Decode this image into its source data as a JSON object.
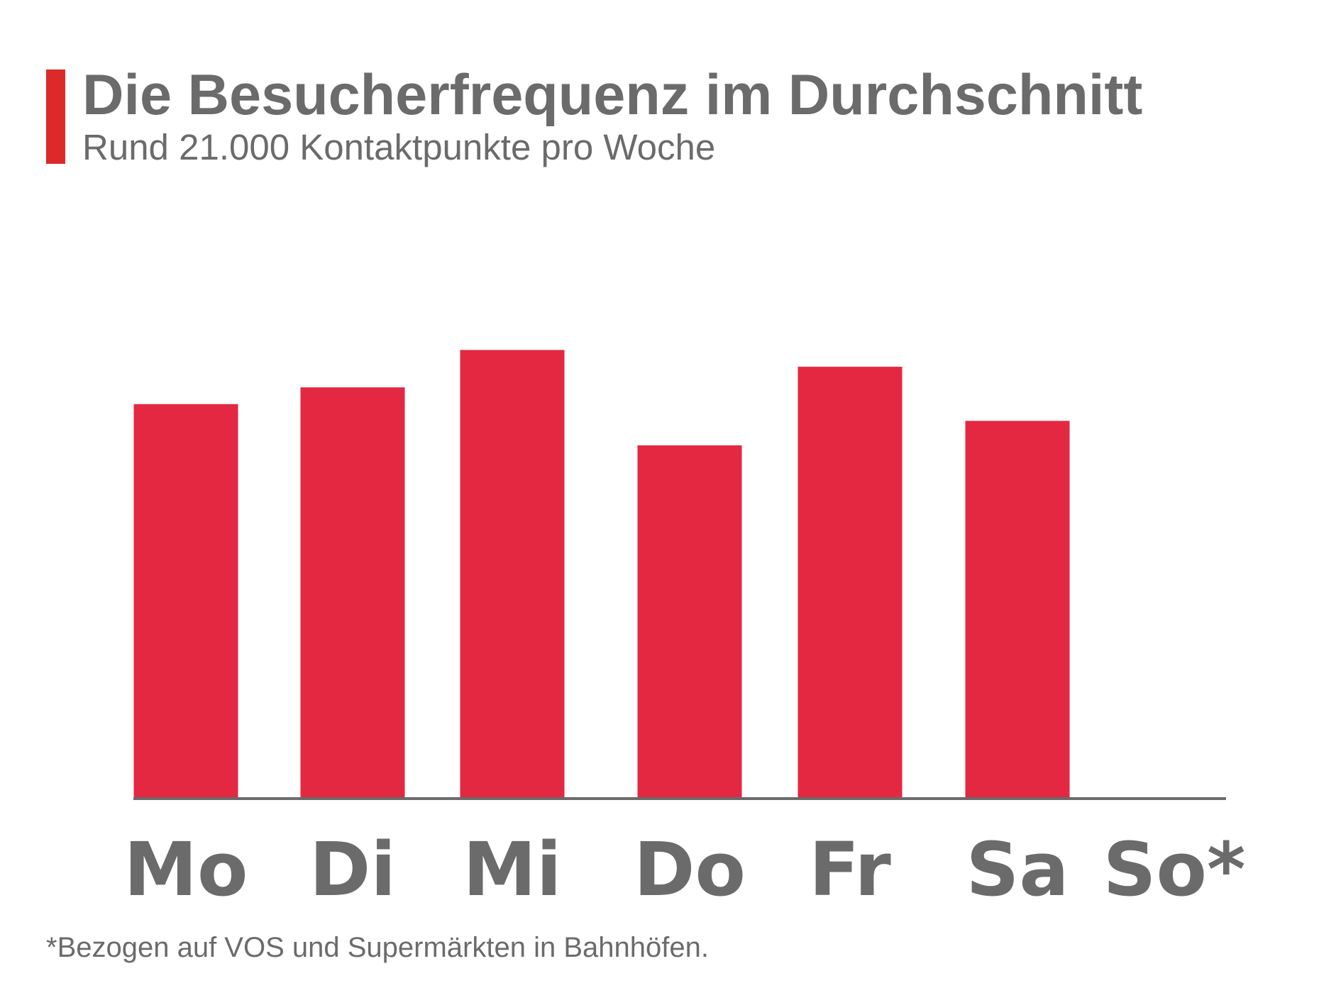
{
  "title": "Die Besucherfrequenz im Durchschnitt",
  "subtitle": "Rund 21.000 Kontaktpunkte pro Woche",
  "footnote": "*Bezogen auf VOS und Supermärkten in Bahnhöfen.",
  "colors": {
    "accent": "#dc2a2a",
    "bar": "#e42842",
    "text": "#6b6b6b",
    "axis": "#6b6b6b"
  },
  "chart_data": {
    "type": "bar",
    "categories": [
      "Mo",
      "Di",
      "Mi",
      "Do",
      "Fr",
      "Sa",
      "So*"
    ],
    "values": [
      3050,
      3180,
      3470,
      2730,
      3340,
      2920,
      0
    ],
    "ylim": [
      0,
      3500
    ],
    "grid": false,
    "legend": "none",
    "xlabel": "",
    "ylabel": ""
  }
}
